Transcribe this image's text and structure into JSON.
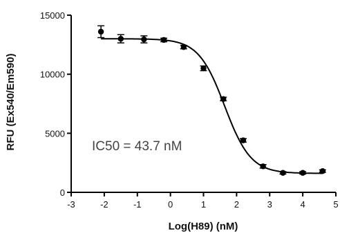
{
  "chart_data": {
    "type": "scatter",
    "xlabel": "Log(H89) (nM)",
    "ylabel": "RFU (Ex540/Em590)",
    "xlim": [
      -3,
      5
    ],
    "ylim": [
      0,
      15000
    ],
    "xticks": [
      "-3",
      "-2",
      "-1",
      "0",
      "1",
      "2",
      "3",
      "4",
      "5"
    ],
    "yticks": [
      "0",
      "5000",
      "10000",
      "15000"
    ],
    "annotation": "IC50 = 43.7 nM",
    "grid": false,
    "series": [
      {
        "x": [
          -2.1,
          -1.5,
          -0.8,
          -0.2,
          0.4,
          1.0,
          1.6,
          2.2,
          2.8,
          3.4,
          4.0,
          4.6
        ],
        "y": [
          13600,
          13000,
          12950,
          12900,
          12300,
          10500,
          7900,
          4400,
          2200,
          1650,
          1650,
          1800
        ],
        "error": [
          500,
          350,
          300,
          150,
          150,
          200,
          150,
          150,
          150,
          100,
          100,
          100
        ]
      }
    ],
    "fit": {
      "type": "sigmoidal dose-response",
      "top": 13000,
      "bottom": 1600,
      "log_ic50": 1.64,
      "hill_slope": -1.1
    }
  }
}
